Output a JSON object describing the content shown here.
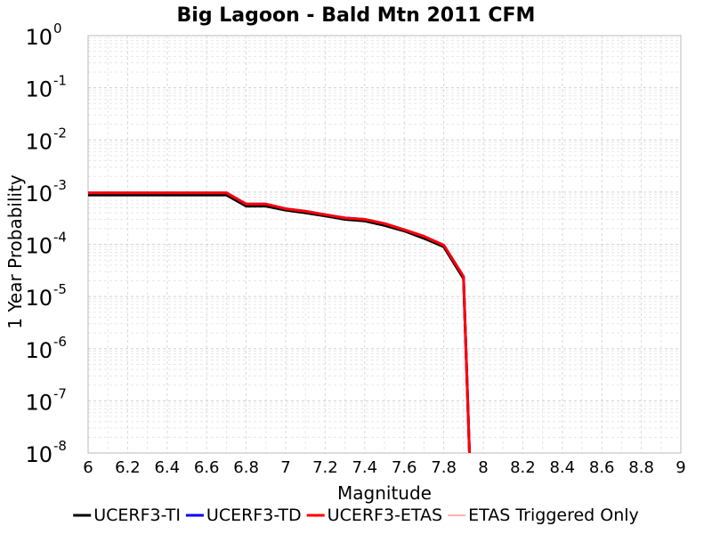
{
  "chart_data": {
    "type": "line",
    "title": "Big Lagoon - Bald Mtn 2011 CFM",
    "xlabel": "Magnitude",
    "ylabel": "1 Year Probability",
    "xlim": [
      6,
      9
    ],
    "ylim": [
      1e-08,
      1
    ],
    "yscale": "log",
    "grid": true,
    "legend_position": "bottom",
    "x_ticks": [
      "6",
      "6.2",
      "6.4",
      "6.6",
      "6.8",
      "7",
      "7.2",
      "7.4",
      "7.6",
      "7.8",
      "8",
      "8.2",
      "8.4",
      "8.6",
      "8.8",
      "9"
    ],
    "y_ticks": [
      {
        "base": "10",
        "exp": "0"
      },
      {
        "base": "10",
        "exp": "-1"
      },
      {
        "base": "10",
        "exp": "-2"
      },
      {
        "base": "10",
        "exp": "-3"
      },
      {
        "base": "10",
        "exp": "-4"
      },
      {
        "base": "10",
        "exp": "-5"
      },
      {
        "base": "10",
        "exp": "-6"
      },
      {
        "base": "10",
        "exp": "-7"
      },
      {
        "base": "10",
        "exp": "-8"
      }
    ],
    "series": [
      {
        "name": "UCERF3-TI",
        "color": "#000000",
        "width": 3,
        "points": [
          [
            6.0,
            0.00088
          ],
          [
            6.7,
            0.00088
          ],
          [
            6.8,
            0.00054
          ],
          [
            6.9,
            0.00054
          ],
          [
            7.0,
            0.00045
          ],
          [
            7.1,
            0.0004
          ],
          [
            7.2,
            0.00035
          ],
          [
            7.3,
            0.0003
          ],
          [
            7.4,
            0.00028
          ],
          [
            7.5,
            0.00023
          ],
          [
            7.6,
            0.00018
          ],
          [
            7.7,
            0.00013
          ],
          [
            7.8,
            9e-05
          ],
          [
            7.9,
            2.2e-05
          ],
          [
            7.93,
            1e-08
          ]
        ]
      },
      {
        "name": "UCERF3-TD",
        "color": "#0000ff",
        "width": 3,
        "points": [
          [
            6.0,
            0.00097
          ],
          [
            6.7,
            0.00097
          ],
          [
            6.8,
            0.00059
          ],
          [
            6.9,
            0.00059
          ],
          [
            7.0,
            0.00048
          ],
          [
            7.1,
            0.00043
          ],
          [
            7.2,
            0.00037
          ],
          [
            7.3,
            0.00032
          ],
          [
            7.4,
            0.0003
          ],
          [
            7.5,
            0.00025
          ],
          [
            7.6,
            0.00019
          ],
          [
            7.7,
            0.000142
          ],
          [
            7.8,
            9.6e-05
          ],
          [
            7.9,
            2.4e-05
          ],
          [
            7.93,
            1e-08
          ]
        ]
      },
      {
        "name": "UCERF3-ETAS",
        "color": "#ff0000",
        "width": 3,
        "points": [
          [
            6.0,
            0.00097
          ],
          [
            6.7,
            0.00097
          ],
          [
            6.8,
            0.00059
          ],
          [
            6.9,
            0.00059
          ],
          [
            7.0,
            0.00048
          ],
          [
            7.1,
            0.00043
          ],
          [
            7.2,
            0.00037
          ],
          [
            7.3,
            0.00032
          ],
          [
            7.4,
            0.0003
          ],
          [
            7.5,
            0.00025
          ],
          [
            7.6,
            0.00019
          ],
          [
            7.7,
            0.000142
          ],
          [
            7.8,
            9.6e-05
          ],
          [
            7.9,
            2.4e-05
          ],
          [
            7.93,
            1e-08
          ]
        ]
      },
      {
        "name": "ETAS Triggered Only",
        "color": "#ff6666",
        "width": 1,
        "points": []
      }
    ]
  }
}
